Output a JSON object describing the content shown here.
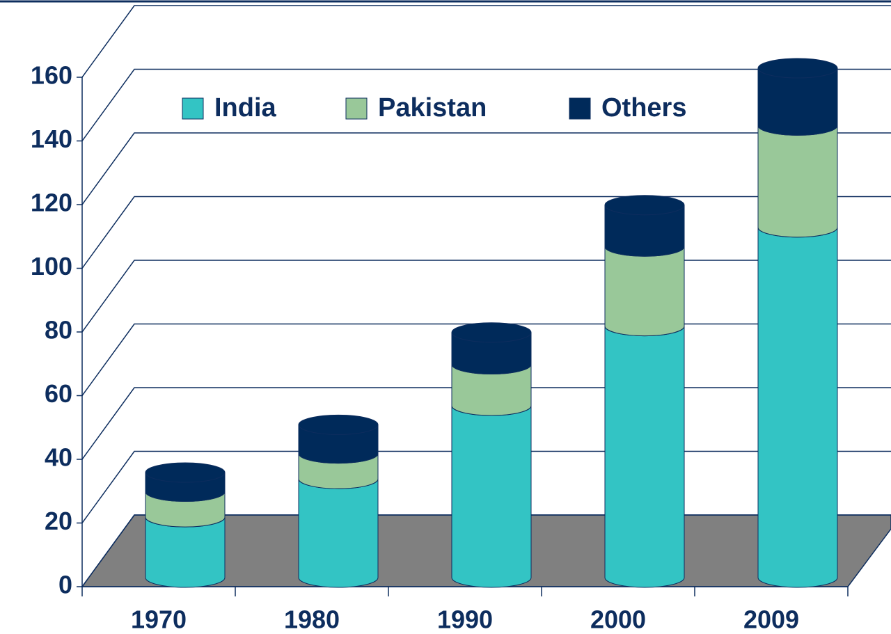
{
  "chart_data": {
    "type": "bar",
    "stacked": true,
    "three_d": true,
    "categories": [
      "1970",
      "1980",
      "1990",
      "2000",
      "2009"
    ],
    "series": [
      {
        "name": "India",
        "color": "#33c4c4",
        "values": [
          19,
          31,
          54,
          79,
          110
        ]
      },
      {
        "name": "Pakistan",
        "color": "#99c899",
        "values": [
          8,
          8,
          13,
          25,
          32
        ]
      },
      {
        "name": "Others",
        "color": "#002a5a",
        "values": [
          6,
          9,
          10,
          13,
          18
        ]
      }
    ],
    "ylim": [
      0,
      160
    ],
    "yticks": [
      0,
      20,
      40,
      60,
      80,
      100,
      120,
      140,
      160
    ],
    "grid": true,
    "legend": "top"
  }
}
